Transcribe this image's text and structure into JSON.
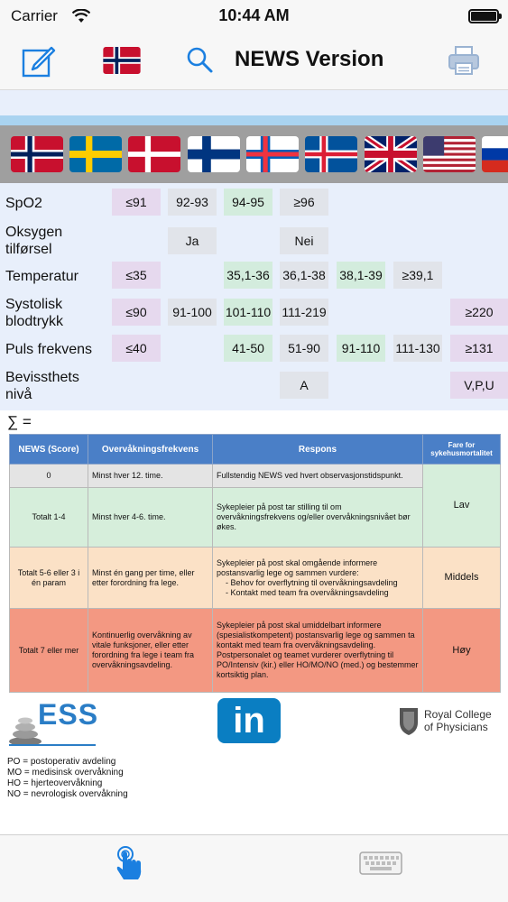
{
  "status": {
    "carrier": "Carrier",
    "time": "10:44 AM"
  },
  "toolbar": {
    "title": "NEWS Version"
  },
  "flags": [
    "Norway",
    "Sweden",
    "Denmark",
    "Finland",
    "Faroe Islands",
    "Iceland",
    "United Kingdom",
    "United States",
    "Russia"
  ],
  "params": {
    "spo2": {
      "label": "SpO2",
      "values": [
        "≤91",
        "92-93",
        "94-95",
        "≥96"
      ]
    },
    "oxygen": {
      "label": "Oksygen tilførsel",
      "values": [
        "Ja",
        "Nei"
      ]
    },
    "temp": {
      "label": "Temperatur",
      "values": [
        "≤35",
        "35,1-36",
        "36,1-38",
        "38,1-39",
        "≥39,1"
      ]
    },
    "sys": {
      "label": "Systolisk blodtrykk",
      "values": [
        "≤90",
        "91-100",
        "101-110",
        "111-219",
        "≥220"
      ]
    },
    "pulse": {
      "label": "Puls frekvens",
      "values": [
        "≤40",
        "41-50",
        "51-90",
        "91-110",
        "111-130",
        "≥131"
      ]
    },
    "avpu": {
      "label": "Bevissthets nivå",
      "values": [
        "A",
        "V,P,U"
      ]
    }
  },
  "sum_label": "∑ =",
  "table": {
    "headers": [
      "NEWS (Score)",
      "Overvåkningsfrekvens",
      "Respons",
      "Fare for sykehusmortalitet"
    ],
    "rows": [
      {
        "score": "0",
        "freq": "Minst hver 12. time.",
        "resp": "Fullstendig NEWS ved hvert observasjonstidspunkt."
      },
      {
        "score": "Totalt 1-4",
        "freq": "Minst hver 4-6. time.",
        "resp": "Sykepleier på post tar stilling til om overvåkningsfrekvens og/eller overvåkningsnivået bør økes.",
        "risk": "Lav"
      },
      {
        "score": "Totalt 5-6 eller 3 i én param",
        "freq": "Minst én gang per time, eller etter forordning fra lege.",
        "resp": "Sykepleier på post skal omgående informere postansvarlig lege og sammen vurdere:",
        "bullets": [
          "Behov for overflytning til overvåkningsavdeling",
          "Kontakt med team fra overvåkningsavdeling"
        ],
        "risk": "Middels"
      },
      {
        "score": "Totalt 7 eller mer",
        "freq": "Kontinuerlig overvåkning av vitale funksjoner, eller etter forordning fra lege i team fra overvåkningsavdeling.",
        "resp": "Sykepleier på post skal umiddelbart informere (spesialistkompetent) postansvarlig lege og sammen ta kontakt med team fra overvåkningsavdeling. Postpersonalet og teamet vurderer overflytning til PO/Intensiv (kir.) eller HO/MO/NO (med.) og bestemmer kortsiktig plan.",
        "risk": "Høy"
      }
    ]
  },
  "logos": {
    "ess": "ESS",
    "linkedin": "in",
    "rcp": [
      "Royal College",
      "of Physicians"
    ]
  },
  "legend": [
    "PO = postoperativ avdeling",
    "MO = medisinsk overvåkning",
    "HO = hjerteovervåkning",
    "NO = nevrologisk overvåkning"
  ]
}
